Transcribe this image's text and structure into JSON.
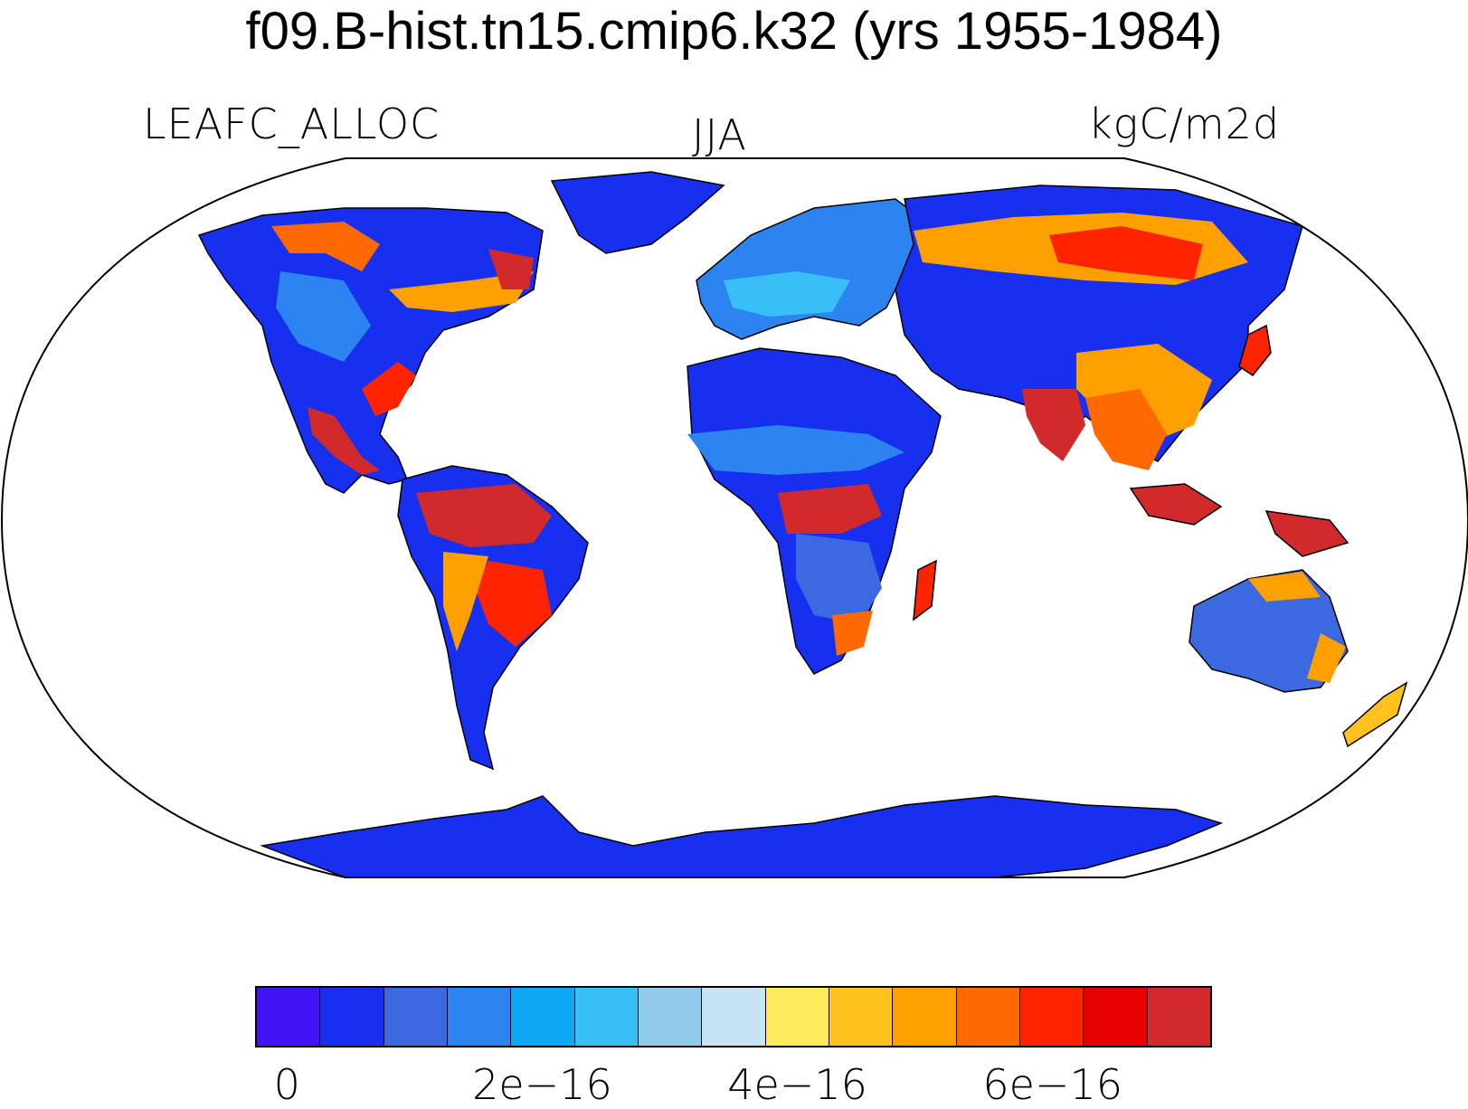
{
  "title": "f09.B-hist.tn15.cmip6.k32 (yrs 1955-1984)",
  "variable": "LEAFC_ALLOC",
  "season": "JJA",
  "units": "kgC/m2d",
  "colorbar": {
    "colors": [
      "#4213f5",
      "#1730f0",
      "#3b6ae0",
      "#2b84f0",
      "#0ea8f7",
      "#38bff5",
      "#90cbeb",
      "#c6e4f5",
      "#ffe95c",
      "#ffc21f",
      "#ffa000",
      "#ff6a00",
      "#ff2400",
      "#e60000",
      "#d22a2a"
    ],
    "tick_labels": [
      "0",
      "2e−16",
      "4e−16",
      "6e−16"
    ],
    "tick_positions": [
      0,
      4,
      8,
      12
    ]
  },
  "projection": "Robinson",
  "ocean_color": "#ffffff",
  "coast_color": "#000000"
}
